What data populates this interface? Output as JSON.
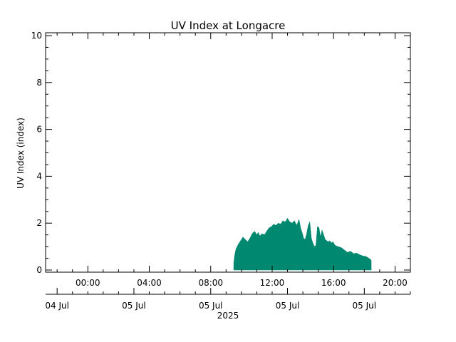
{
  "chart_data": {
    "type": "area",
    "title": "UV Index at Longacre",
    "ylabel": "UV Index (index)",
    "xlabel": "",
    "ylim": [
      0,
      10
    ],
    "y_ticks": [
      "0",
      "2",
      "4",
      "6",
      "8",
      "10"
    ],
    "xlim_hours": [
      -2.75,
      21.0
    ],
    "x_time_ticks": [
      {
        "hour": 0,
        "label": "00:00"
      },
      {
        "hour": 4,
        "label": "04:00"
      },
      {
        "hour": 8,
        "label": "08:00"
      },
      {
        "hour": 12,
        "label": "12:00"
      },
      {
        "hour": 16,
        "label": "16:00"
      },
      {
        "hour": 20,
        "label": "20:00"
      }
    ],
    "date_axis": {
      "labels": [
        "04 Jul",
        "05 Jul",
        "05 Jul",
        "05 Jul",
        "05 Jul"
      ],
      "label_hours": [
        -2.0,
        3.0,
        8.0,
        13.0,
        18.0
      ],
      "year": "2025"
    },
    "fill_color": "#008870",
    "series": [
      {
        "x_hours": [
          9.5,
          9.55,
          9.65,
          9.8,
          9.95,
          10.1,
          10.25,
          10.4,
          10.55,
          10.7,
          10.85,
          11.0,
          11.1,
          11.2,
          11.35,
          11.5,
          11.65,
          11.8,
          11.95,
          12.1,
          12.25,
          12.4,
          12.55,
          12.7,
          12.85,
          13.0,
          13.15,
          13.3,
          13.45,
          13.6,
          13.75,
          13.85,
          13.95,
          14.05,
          14.15,
          14.25,
          14.35,
          14.45,
          14.55,
          14.65,
          14.75,
          14.85,
          14.95,
          15.05,
          15.15,
          15.25,
          15.35,
          15.45,
          15.55,
          15.65,
          15.75,
          15.85,
          15.95,
          16.1,
          16.3,
          16.5,
          16.7,
          16.9,
          17.1,
          17.3,
          17.5,
          17.7,
          17.9,
          18.1,
          18.3,
          18.4,
          18.45
        ],
        "values": [
          0.3,
          0.6,
          0.9,
          1.1,
          1.25,
          1.4,
          1.3,
          1.2,
          1.35,
          1.55,
          1.65,
          1.5,
          1.6,
          1.45,
          1.55,
          1.5,
          1.65,
          1.8,
          1.85,
          1.95,
          1.9,
          2.0,
          1.95,
          2.1,
          2.05,
          2.2,
          2.05,
          2.0,
          2.1,
          1.9,
          2.15,
          1.8,
          1.6,
          1.35,
          1.3,
          1.55,
          1.9,
          2.05,
          1.35,
          1.15,
          1.0,
          1.05,
          1.85,
          1.8,
          1.4,
          1.7,
          1.5,
          1.3,
          1.25,
          1.2,
          1.25,
          1.15,
          1.2,
          1.05,
          1.0,
          0.95,
          0.85,
          0.75,
          0.8,
          0.7,
          0.72,
          0.65,
          0.6,
          0.58,
          0.5,
          0.45,
          0.4
        ]
      }
    ]
  }
}
